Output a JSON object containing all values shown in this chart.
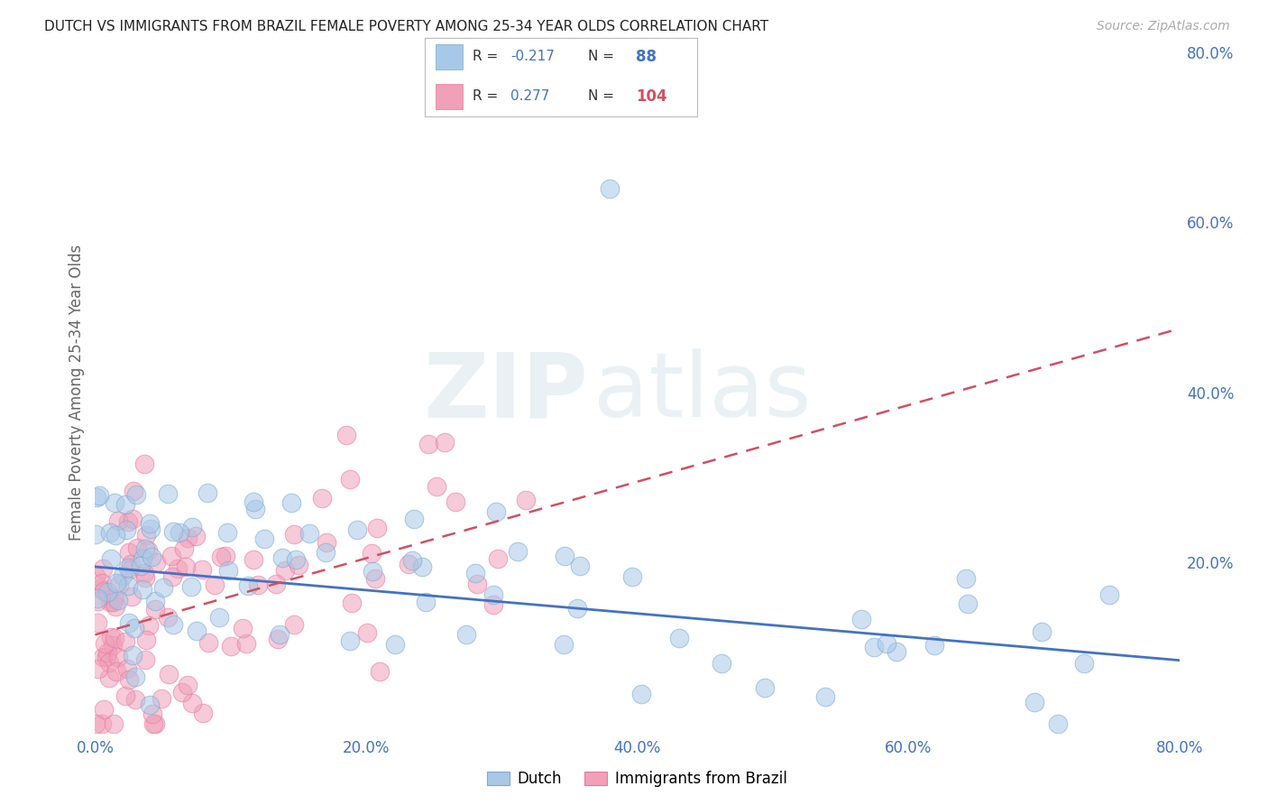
{
  "title": "DUTCH VS IMMIGRANTS FROM BRAZIL FEMALE POVERTY AMONG 25-34 YEAR OLDS CORRELATION CHART",
  "source_text": "Source: ZipAtlas.com",
  "ylabel": "Female Poverty Among 25-34 Year Olds",
  "xlim": [
    0.0,
    0.8
  ],
  "ylim": [
    0.0,
    0.8
  ],
  "xtick_labels": [
    "0.0%",
    "20.0%",
    "40.0%",
    "60.0%",
    "80.0%"
  ],
  "xtick_vals": [
    0.0,
    0.2,
    0.4,
    0.6,
    0.8
  ],
  "right_ytick_labels": [
    "80.0%",
    "60.0%",
    "40.0%",
    "20.0%"
  ],
  "right_ytick_vals": [
    0.8,
    0.6,
    0.4,
    0.2
  ],
  "dutch_color": "#a8c8e8",
  "brazil_color": "#f0a0b8",
  "dutch_edge_color": "#7aaad0",
  "brazil_edge_color": "#e878a0",
  "dutch_line_color": "#4472c4",
  "brazil_line_color": "#d05060",
  "dutch_R": -0.217,
  "dutch_N": 88,
  "brazil_R": 0.277,
  "brazil_N": 104,
  "watermark_zip": "ZIP",
  "watermark_atlas": "atlas",
  "legend_dutch": "Dutch",
  "legend_brazil": "Immigrants from Brazil",
  "legend_R_color": "#333333",
  "legend_N_color": "#4472c4",
  "legend_N_brazil_color": "#d05060",
  "title_color": "#222222",
  "axis_tick_color": "#4472c4",
  "grid_color": "#cccccc",
  "background_color": "#ffffff",
  "dutch_line_start_y": 0.195,
  "dutch_line_end_y": 0.085,
  "brazil_line_start_y": 0.115,
  "brazil_line_end_y": 0.475
}
